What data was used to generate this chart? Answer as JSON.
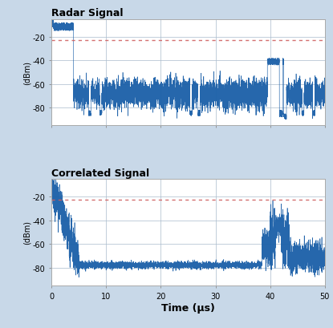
{
  "title1": "Radar Signal",
  "title2": "Correlated Signal",
  "xlabel": "Time (μs)",
  "ylabel": "(dBm)",
  "xlim": [
    0,
    50
  ],
  "ylim": [
    -95,
    -5
  ],
  "yticks": [
    -80,
    -60,
    -40,
    -20
  ],
  "xticks": [
    0,
    10,
    20,
    30,
    40,
    50
  ],
  "dashed_line_y": -23,
  "dashed_color": "#d06060",
  "signal_color": "#1a5fa8",
  "bg_color": "#c8d8e8",
  "plot_bg": "#ffffff",
  "grid_color": "#aabbcc",
  "title_fontsize": 9,
  "tick_fontsize": 7,
  "xlabel_fontsize": 9
}
